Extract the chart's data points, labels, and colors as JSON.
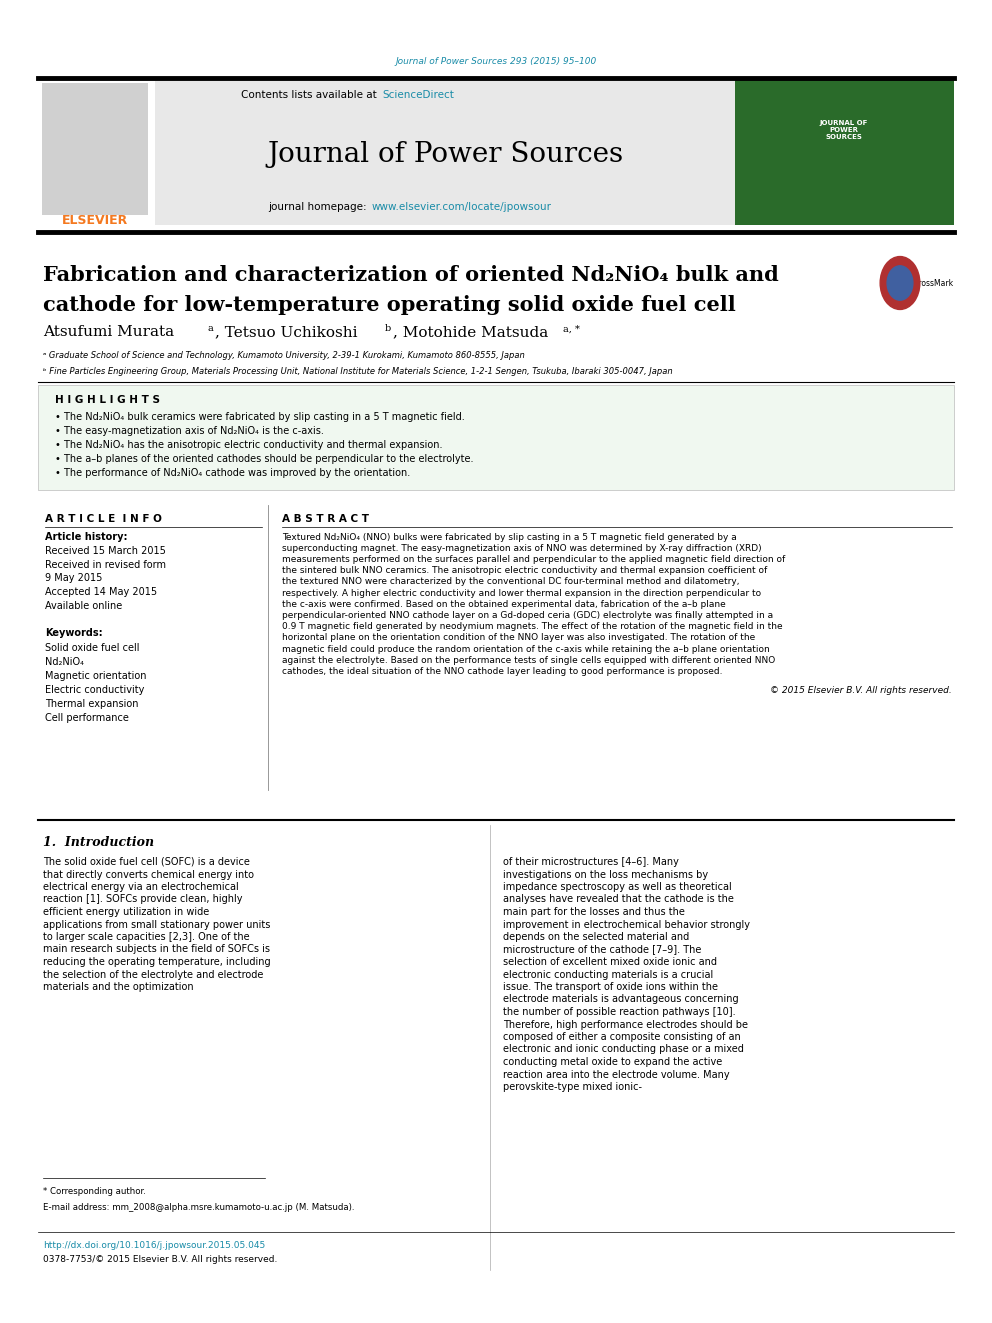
{
  "page_width": 9.92,
  "page_height": 13.23,
  "journal_ref": "Journal of Power Sources 293 (2015) 95–100",
  "journal_ref_color": "#1a8ca8",
  "header_bg": "#e8e8e8",
  "journal_title": "Journal of Power Sources",
  "journal_homepage_text": "journal homepage: ",
  "journal_homepage_url": "www.elsevier.com/locate/jpowsour",
  "journal_homepage_color": "#1a8ca8",
  "elsevier_color": "#f47920",
  "article_title_line1": "Fabrication and characterization of oriented Nd₂NiO₄ bulk and",
  "article_title_line2": "cathode for low-temperature operating solid oxide fuel cell",
  "affil_a": "ᵃ Graduate School of Science and Technology, Kumamoto University, 2-39-1 Kurokami, Kumamoto 860-8555, Japan",
  "affil_b": "ᵇ Fine Particles Engineering Group, Materials Processing Unit, National Institute for Materials Science, 1-2-1 Sengen, Tsukuba, Ibaraki 305-0047, Japan",
  "highlights_title": "H I G H L I G H T S",
  "highlights": [
    "• The Nd₂NiO₄ bulk ceramics were fabricated by slip casting in a 5 T magnetic field.",
    "• The easy-magnetization axis of Nd₂NiO₄ is the c-axis.",
    "• The Nd₂NiO₄ has the anisotropic electric conductivity and thermal expansion.",
    "• The a–b planes of the oriented cathodes should be perpendicular to the electrolyte.",
    "• The performance of Nd₂NiO₄ cathode was improved by the orientation."
  ],
  "article_info_title": "A R T I C L E  I N F O",
  "article_history_title": "Article history:",
  "received1": "Received 15 March 2015",
  "received2": "Received in revised form",
  "received2b": "9 May 2015",
  "accepted": "Accepted 14 May 2015",
  "available": "Available online",
  "keywords_title": "Keywords:",
  "keywords": [
    "Solid oxide fuel cell",
    "Nd₂NiO₄",
    "Magnetic orientation",
    "Electric conductivity",
    "Thermal expansion",
    "Cell performance"
  ],
  "abstract_title": "A B S T R A C T",
  "abstract_text": "Textured Nd₂NiO₄ (NNO) bulks were fabricated by slip casting in a 5 T magnetic field generated by a superconducting magnet. The easy-magnetization axis of NNO was determined by X-ray diffraction (XRD) measurements performed on the surfaces parallel and perpendicular to the applied magnetic field direction of the sintered bulk NNO ceramics. The anisotropic electric conductivity and thermal expansion coefficient of the textured NNO were characterized by the conventional DC four-terminal method and dilatometry, respectively. A higher electric conductivity and lower thermal expansion in the direction perpendicular to the c-axis were confirmed. Based on the obtained experimental data, fabrication of the a–b plane perpendicular-oriented NNO cathode layer on a Gd-doped ceria (GDC) electrolyte was finally attempted in a 0.9 T magnetic field generated by neodymium magnets. The effect of the rotation of the magnetic field in the horizontal plane on the orientation condition of the NNO layer was also investigated. The rotation of the magnetic field could produce the random orientation of the c-axis while retaining the a–b plane orientation against the electrolyte. Based on the performance tests of single cells equipped with different oriented NNO cathodes, the ideal situation of the NNO cathode layer leading to good performance is proposed.",
  "copyright": "© 2015 Elsevier B.V. All rights reserved.",
  "intro_title": "1.  Introduction",
  "intro_text1": "The solid oxide fuel cell (SOFC) is a device that directly converts chemical energy into electrical energy via an electrochemical reaction [1]. SOFCs provide clean, highly efficient energy utilization in wide applications from small stationary power units to larger scale capacities [2,3]. One of the main research subjects in the field of SOFCs is reducing the operating temperature, including the selection of the electrolyte and electrode materials and the optimization",
  "intro_text2": "of their microstructures [4–6]. Many investigations on the loss mechanisms by impedance spectroscopy as well as theoretical analyses have revealed that the cathode is the main part for the losses and thus the improvement in electrochemical behavior strongly depends on the selected material and microstructure of the cathode [7–9]. The selection of excellent mixed oxide ionic and electronic conducting materials is a crucial issue. The transport of oxide ions within the electrode materials is advantageous concerning the number of possible reaction pathways [10]. Therefore, high performance electrodes should be composed of either a composite consisting of an electronic and ionic conducting phase or a mixed conducting metal oxide to expand the active reaction area into the electrode volume. Many perovskite-type mixed ionic-",
  "footnote_star": "* Corresponding author.",
  "footnote_email": "E-mail address: mm_2008@alpha.msre.kumamoto-u.ac.jp (M. Matsuda).",
  "doi": "http://dx.doi.org/10.1016/j.jpowsour.2015.05.045",
  "doi_color": "#1a8ca8",
  "issn": "0378-7753/© 2015 Elsevier B.V. All rights reserved.",
  "highlights_bg": "#f0f8f0"
}
